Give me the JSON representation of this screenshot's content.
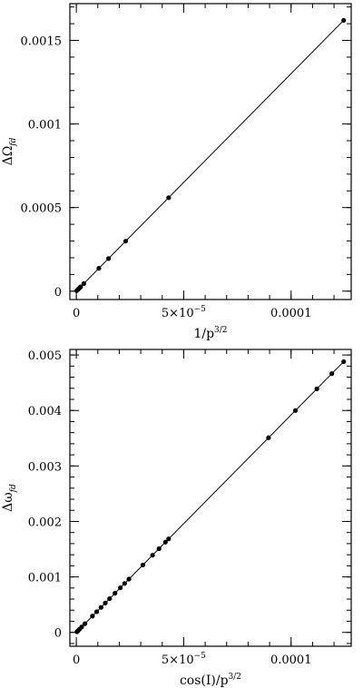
{
  "chart_data": [
    {
      "type": "scatter",
      "xlabel": "1/p",
      "xlabel_sup": "3/2",
      "ylabel": "ΔΩ",
      "ylabel_sub": "fd",
      "xlim": [
        -3e-06,
        0.000128
      ],
      "ylim": [
        -5e-05,
        0.00172
      ],
      "x_ticks": [
        {
          "value": 0,
          "label": "0"
        },
        {
          "value": 5e-05,
          "label": "5×10",
          "sup": "−5"
        },
        {
          "value": 0.0001,
          "label": "0.0001"
        }
      ],
      "y_ticks": [
        {
          "value": 0,
          "label": "0"
        },
        {
          "value": 0.0005,
          "label": "0.0005"
        },
        {
          "value": 0.001,
          "label": "0.001"
        },
        {
          "value": 0.0015,
          "label": "0.0015"
        }
      ],
      "x_minor_step": 1e-05,
      "y_minor_step": 0.0001,
      "line": {
        "x": [
          0,
          0.0001245
        ],
        "y": [
          0,
          0.00162
        ]
      },
      "points": [
        {
          "x": 2e-07,
          "y": 2.6e-06
        },
        {
          "x": 5e-07,
          "y": 6.5e-06
        },
        {
          "x": 1e-06,
          "y": 1.3e-05
        },
        {
          "x": 1.5e-06,
          "y": 1.95e-05
        },
        {
          "x": 2e-06,
          "y": 2.6e-05
        },
        {
          "x": 3.5e-06,
          "y": 4.55e-05
        },
        {
          "x": 1.05e-05,
          "y": 0.0001365
        },
        {
          "x": 1.5e-05,
          "y": 0.000195
        },
        {
          "x": 2.3e-05,
          "y": 0.000299
        },
        {
          "x": 4.3e-05,
          "y": 0.000559
        },
        {
          "x": 0.0001245,
          "y": 0.00162
        }
      ]
    },
    {
      "type": "scatter",
      "xlabel": "cos(I)/p",
      "xlabel_sup": "3/2",
      "ylabel": "Δω",
      "ylabel_sub": "fd",
      "xlim": [
        -3e-06,
        0.000128
      ],
      "ylim": [
        -0.00025,
        0.0051
      ],
      "x_ticks": [
        {
          "value": 0,
          "label": "0"
        },
        {
          "value": 5e-05,
          "label": "5×10",
          "sup": "−5"
        },
        {
          "value": 0.0001,
          "label": "0.0001"
        }
      ],
      "y_ticks": [
        {
          "value": 0,
          "label": "0"
        },
        {
          "value": 0.001,
          "label": "0.001"
        },
        {
          "value": 0.002,
          "label": "0.002"
        },
        {
          "value": 0.003,
          "label": "0.003"
        },
        {
          "value": 0.004,
          "label": "0.004"
        },
        {
          "value": 0.005,
          "label": "0.005"
        }
      ],
      "x_minor_step": 1e-05,
      "y_minor_step": 0.0002,
      "line": {
        "x": [
          0,
          0.0001245
        ],
        "y": [
          0,
          0.00488
        ]
      },
      "points": [
        {
          "x": 3e-07,
          "y": 1.18e-05
        },
        {
          "x": 8e-07,
          "y": 3.14e-05
        },
        {
          "x": 1.5e-06,
          "y": 5.88e-05
        },
        {
          "x": 2.5e-06,
          "y": 9.8e-05
        },
        {
          "x": 4e-06,
          "y": 0.0001568
        },
        {
          "x": 7.5e-06,
          "y": 0.000294
        },
        {
          "x": 9.5e-06,
          "y": 0.0003724
        },
        {
          "x": 1.15e-05,
          "y": 0.0004508
        },
        {
          "x": 1.35e-05,
          "y": 0.0005292
        },
        {
          "x": 1.55e-05,
          "y": 0.0006076
        },
        {
          "x": 1.8e-05,
          "y": 0.0007056
        },
        {
          "x": 2.05e-05,
          "y": 0.0008036
        },
        {
          "x": 2.25e-05,
          "y": 0.000882
        },
        {
          "x": 2.45e-05,
          "y": 0.0009604
        },
        {
          "x": 3.1e-05,
          "y": 0.0012152
        },
        {
          "x": 3.55e-05,
          "y": 0.0013916
        },
        {
          "x": 3.85e-05,
          "y": 0.0015092
        },
        {
          "x": 4.15e-05,
          "y": 0.0016268
        },
        {
          "x": 4.3e-05,
          "y": 0.0016856
        },
        {
          "x": 8.95e-05,
          "y": 0.0035084
        },
        {
          "x": 0.000102,
          "y": 0.0039984
        },
        {
          "x": 0.000112,
          "y": 0.0043904
        },
        {
          "x": 0.000119,
          "y": 0.0046648
        },
        {
          "x": 0.0001245,
          "y": 0.00488
        }
      ]
    }
  ]
}
